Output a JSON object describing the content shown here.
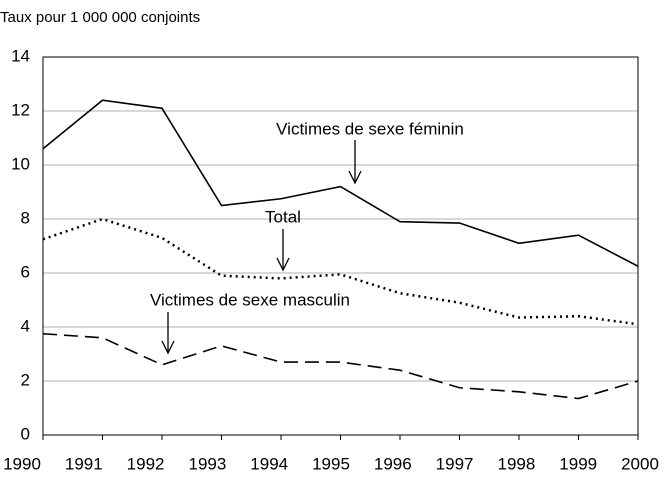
{
  "chart_data": {
    "type": "line",
    "y_axis_label": "Taux pour 1 000 000 conjoints",
    "x": [
      1990,
      1991,
      1992,
      1993,
      1994,
      1995,
      1996,
      1997,
      1998,
      1999,
      2000
    ],
    "xlim": [
      1990,
      2000
    ],
    "xticks": [
      1990,
      1991,
      1992,
      1993,
      1994,
      1995,
      1996,
      1997,
      1998,
      1999,
      2000
    ],
    "ylim": [
      0,
      14
    ],
    "yticks": [
      0,
      2,
      4,
      6,
      8,
      10,
      12,
      14
    ],
    "grid": true,
    "series": [
      {
        "name": "Victimes de sexe féminin",
        "color": "#000000",
        "dash": "solid",
        "values": [
          10.6,
          12.4,
          12.1,
          8.5,
          8.75,
          9.2,
          7.9,
          7.85,
          7.1,
          7.4,
          6.25
        ]
      },
      {
        "name": "Total",
        "color": "#000000",
        "dash": "dotted",
        "values": [
          7.25,
          8.0,
          7.3,
          5.9,
          5.8,
          5.95,
          5.25,
          4.9,
          4.35,
          4.4,
          4.1
        ]
      },
      {
        "name": "Victimes de sexe masculin",
        "color": "#000000",
        "dash": "dashed",
        "values": [
          3.75,
          3.6,
          2.6,
          3.3,
          2.7,
          2.7,
          2.4,
          1.75,
          1.6,
          1.35,
          2.0
        ]
      }
    ]
  }
}
